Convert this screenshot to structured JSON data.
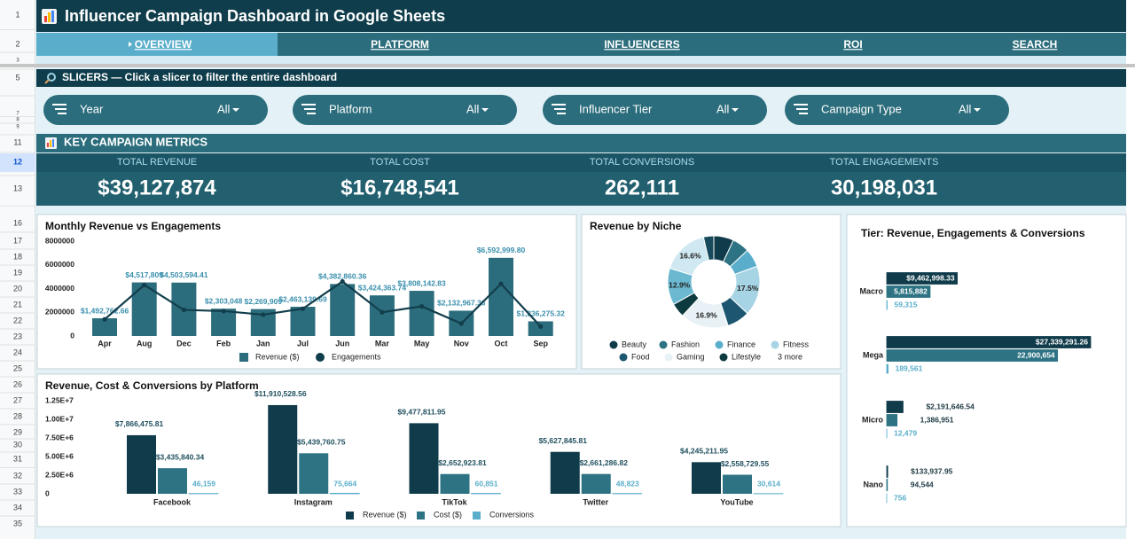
{
  "row_numbers": [
    "1",
    "2",
    "3",
    "5",
    "7",
    "8",
    "9",
    "11",
    "12",
    "13",
    "16",
    "17",
    "18",
    "19",
    "20",
    "21",
    "22",
    "23",
    "24",
    "25",
    "26",
    "27",
    "28",
    "29",
    "30",
    "31",
    "32",
    "33",
    "34",
    "35"
  ],
  "header": {
    "title": "Influencer Campaign Dashboard in Google Sheets"
  },
  "nav": [
    "OVERVIEW",
    "PLATFORM",
    "INFLUENCERS",
    "ROI",
    "SEARCH"
  ],
  "slicer_bar": "SLICERS — Click a slicer to filter the entire dashboard",
  "slicers": [
    {
      "label": "Year",
      "value": "All"
    },
    {
      "label": "Platform",
      "value": "All"
    },
    {
      "label": "Influencer Tier",
      "value": "All"
    },
    {
      "label": "Campaign Type",
      "value": "All"
    }
  ],
  "metrics_title": "KEY CAMPAIGN METRICS",
  "metrics": [
    {
      "label": "TOTAL REVENUE",
      "value": "$39,127,874"
    },
    {
      "label": "TOTAL COST",
      "value": "$16,748,541"
    },
    {
      "label": "TOTAL CONVERSIONS",
      "value": "262,111"
    },
    {
      "label": "TOTAL ENGAGEMENTS",
      "value": "30,198,031"
    }
  ],
  "chart_data": [
    {
      "type": "combo",
      "title": "Monthly Revenue vs Engagements",
      "categories": [
        "Apr",
        "Aug",
        "Dec",
        "Feb",
        "Jan",
        "Jul",
        "Jun",
        "Mar",
        "May",
        "Nov",
        "Oct",
        "Sep"
      ],
      "series": [
        {
          "name": "Revenue ($)",
          "type": "bar",
          "color": "#2b6d7c",
          "values": [
            1492762.66,
            4517809,
            4503594.41,
            2303048,
            2269909,
            2463139.69,
            4382860.36,
            3424363.74,
            3808142.83,
            2132967.36,
            6592999.8,
            1236275.32
          ],
          "value_labels": [
            "$1,492,762.66",
            "$4,517,809",
            "$4,503,594.41",
            "$2,303,048",
            "$2,269,909",
            "$2,463,139.69",
            "$4,382,860.36",
            "$3,424,363.74",
            "$3,808,142.83",
            "$2,132,967.36",
            "$6,592,999.80",
            "$1,236,275.32"
          ]
        },
        {
          "name": "Engagements",
          "type": "line",
          "color": "#123e4c",
          "values": [
            1400000,
            4300000,
            2200000,
            2100000,
            1800000,
            2300000,
            4600000,
            2000000,
            2500000,
            1050000,
            4400000,
            800000
          ]
        }
      ],
      "ylim": [
        0,
        8000000
      ],
      "yticks": [
        0,
        2000000,
        4000000,
        6000000,
        8000000
      ],
      "label_color": "#3a8fad"
    },
    {
      "type": "donut",
      "title": "Revenue by Niche",
      "categories": [
        "Beauty",
        "Fashion",
        "Finance",
        "Fitness",
        "Food",
        "Gaming",
        "Lifestyle",
        null,
        null,
        null
      ],
      "values": [
        7,
        6,
        6.5,
        17.5,
        8,
        16.9,
        5,
        12.9,
        16.6,
        3.6
      ],
      "value_labels": [
        null,
        null,
        null,
        "17.5%",
        null,
        "16.9%",
        null,
        "12.9%",
        "16.6%",
        null
      ],
      "colors": [
        "#0f3b4a",
        "#2d7383",
        "#5aaecb",
        "#a6d4e4",
        "#1d5670",
        "#e8f2f6",
        "#0d3a3e",
        "#6bb8d1",
        "#cfe8f1",
        "#174a5c"
      ],
      "legend_more": "3 more"
    },
    {
      "type": "grouped_bar",
      "title": "Revenue, Cost & Conversions by Platform",
      "categories": [
        "Facebook",
        "Instagram",
        "TikTok",
        "Twitter",
        "YouTube"
      ],
      "series": [
        {
          "name": "Revenue ($)",
          "color": "#0f3b4a",
          "values": [
            7866475.81,
            11910528.56,
            9477811.95,
            5627845.81,
            4245211.95
          ],
          "value_labels": [
            "$7,866,475.81",
            "$11,910,528.56",
            "$9,477,811.95",
            "$5,627,845.81",
            "$4,245,211.95"
          ]
        },
        {
          "name": "Cost ($)",
          "color": "#2d7383",
          "values": [
            3435840.34,
            5439760.75,
            2652923.81,
            2661286.82,
            2558729.55
          ],
          "value_labels": [
            "$3,435,840.34",
            "$5,439,760.75",
            "$2,652,923.81",
            "$2,661,286.82",
            "$2,558,729.55"
          ]
        },
        {
          "name": "Conversions",
          "color": "#5aaecb",
          "values": [
            46159,
            75664,
            60851,
            48823,
            30614
          ],
          "value_labels": [
            "46,159",
            "75,664",
            "60,851",
            "48,823",
            "30,614"
          ]
        }
      ],
      "ylim": [
        0,
        12500000
      ],
      "yticks": [
        {
          "value": 0,
          "label": "0"
        },
        {
          "value": 2500000,
          "label": "2.50E+6"
        },
        {
          "value": 5000000,
          "label": "5.00E+6"
        },
        {
          "value": 7500000,
          "label": "7.50E+6"
        },
        {
          "value": 10000000,
          "label": "1.00E+7"
        },
        {
          "value": 12500000,
          "label": "1.25E+7"
        }
      ]
    },
    {
      "type": "hbar",
      "title": "Tier: Revenue, Engagements & Conversions",
      "categories": [
        "Macro",
        "Mega",
        "Micro",
        "Nano"
      ],
      "series": [
        {
          "color": "#0f3b4a",
          "values": [
            9462998.33,
            27339291.26,
            2191646.54,
            133937.95
          ],
          "value_labels": [
            "$9,462,998.33",
            "$27,339,291.26",
            "$2,191,646.54",
            "$133,937.95"
          ]
        },
        {
          "color": "#2d7383",
          "values": [
            5815882,
            22900654,
            1386951,
            94544
          ],
          "value_labels": [
            "5,815,882",
            "22,900,654",
            "1,386,951",
            "94,544"
          ]
        },
        {
          "color": "#5aaecb",
          "values": [
            59315,
            189561,
            12479,
            756
          ],
          "value_labels": [
            "59,315",
            "189,561",
            "12,479",
            "756"
          ]
        }
      ]
    }
  ]
}
